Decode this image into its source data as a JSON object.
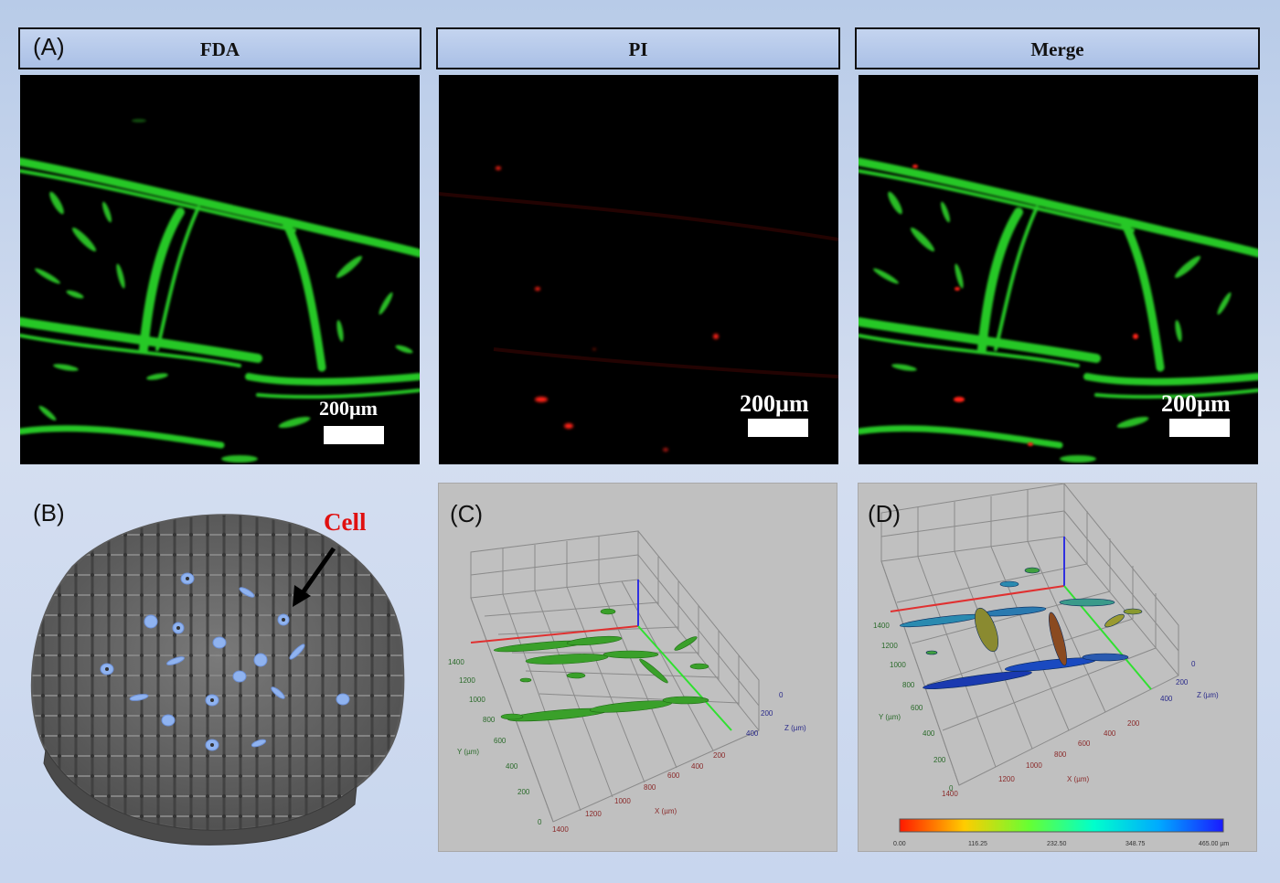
{
  "panel_a": {
    "label": "(A)",
    "headers": [
      "FDA",
      "PI",
      "Merge"
    ],
    "scale_text": "200µm"
  },
  "panel_b": {
    "label": "(B)",
    "annotation": "Cell"
  },
  "panel_c": {
    "label": "(C)",
    "y_axis_label": "Y (µm)",
    "x_axis_label": "X (µm)",
    "z_axis_label": "Z (µm)",
    "y_ticks": [
      "1400",
      "1200",
      "1000",
      "800",
      "600",
      "400",
      "200",
      "0"
    ],
    "x_ticks": [
      "1400",
      "1200",
      "1000",
      "800",
      "600",
      "400",
      "200"
    ],
    "z_ticks": [
      "0",
      "200",
      "400"
    ]
  },
  "panel_d": {
    "label": "(D)",
    "y_axis_label": "Y (µm)",
    "x_axis_label": "X (µm)",
    "z_axis_label": "Z (µm)",
    "y_ticks": [
      "1400",
      "1200",
      "1000",
      "800",
      "600",
      "400",
      "200",
      "0"
    ],
    "x_ticks": [
      "1400",
      "1200",
      "1000",
      "800",
      "600",
      "400",
      "200"
    ],
    "z_ticks": [
      "0",
      "200",
      "400"
    ],
    "colorbar_ticks": [
      "0.00",
      "116.25",
      "232.50",
      "348.75",
      "465.00 µm"
    ]
  },
  "colors": {
    "fda_green": "#22c61e",
    "pi_red": "#ff2a1a",
    "cell_blue": "#8fb3f0",
    "scaffold_gray": "#6a6a6a"
  }
}
